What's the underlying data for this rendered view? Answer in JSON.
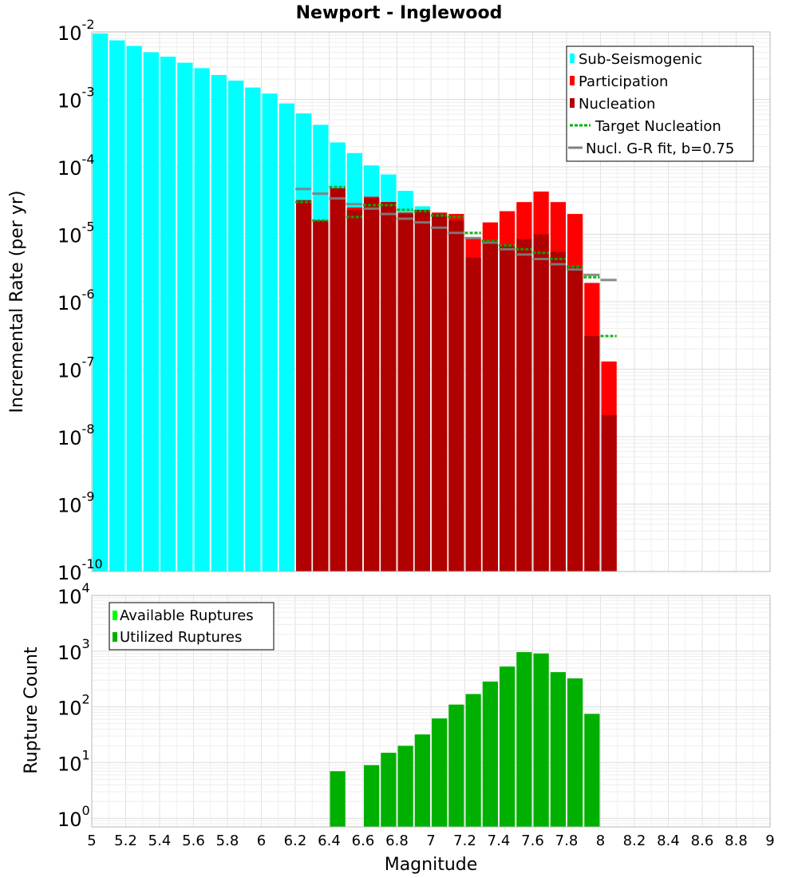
{
  "title": "Newport - Inglewood",
  "xlabel": "Magnitude",
  "x_ticks": [
    "5",
    "5.2",
    "5.4",
    "5.6",
    "5.8",
    "6",
    "6.2",
    "6.4",
    "6.6",
    "6.8",
    "7",
    "7.2",
    "7.4",
    "7.6",
    "7.8",
    "8",
    "8.2",
    "8.4",
    "8.6",
    "8.8",
    "9"
  ],
  "colors": {
    "sub_seismogenic": "#00ffff",
    "participation": "#ff0000",
    "nucleation": "#b00000",
    "target_nucleation": "#00b000",
    "gr_fit": "#808080",
    "available_ruptures": "#00ff00",
    "utilized_ruptures": "#00b000"
  },
  "chart_data": [
    {
      "type": "bar",
      "ylabel": "Incremental Rate (per yr)",
      "y_scale": "log",
      "xlim": [
        5,
        9
      ],
      "ylim": [
        1e-10,
        0.01
      ],
      "y_tick_base": [
        "10",
        "10",
        "10",
        "10",
        "10",
        "10",
        "10",
        "10",
        "10"
      ],
      "y_tick_exp": [
        "-10",
        "-9",
        "-8",
        "-7",
        "-6",
        "-5",
        "-4",
        "-3",
        "-2"
      ],
      "legend": [
        "Sub-Seismogenic",
        "Participation",
        "Nucleation",
        "Target Nucleation",
        "Nucl. G-R fit, b=0.75"
      ],
      "legend_position": "top-right",
      "grid": true,
      "bin_width": 0.1,
      "series": [
        {
          "name": "Sub-Seismogenic",
          "x": [
            5.05,
            5.15,
            5.25,
            5.35,
            5.45,
            5.55,
            5.65,
            5.75,
            5.85,
            5.95,
            6.05,
            6.15,
            6.25,
            6.35,
            6.45,
            6.55,
            6.65,
            6.75,
            6.85,
            6.95
          ],
          "values": [
            0.0095,
            0.0075,
            0.0062,
            0.005,
            0.0043,
            0.0035,
            0.0029,
            0.0023,
            0.0019,
            0.0015,
            0.00122,
            0.00087,
            0.00062,
            0.00042,
            0.00023,
            0.00016,
            0.000105,
            7.7e-05,
            4.4e-05,
            2.6e-05
          ]
        },
        {
          "name": "Participation",
          "x": [
            6.25,
            6.35,
            6.45,
            6.55,
            6.65,
            6.75,
            6.85,
            6.95,
            7.05,
            7.15,
            7.25,
            7.35,
            7.45,
            7.55,
            7.65,
            7.75,
            7.85,
            7.95,
            8.05
          ],
          "values": [
            3.2e-05,
            1.6e-05,
            4.8e-05,
            2.5e-05,
            3.6e-05,
            3e-05,
            2.1e-05,
            2.3e-05,
            2.1e-05,
            2e-05,
            8.7e-06,
            1.5e-05,
            2.2e-05,
            3e-05,
            4.3e-05,
            3e-05,
            2e-05,
            1.9e-06,
            1.3e-07
          ]
        },
        {
          "name": "Nucleation",
          "x": [
            6.25,
            6.35,
            6.45,
            6.55,
            6.65,
            6.75,
            6.85,
            6.95,
            7.05,
            7.15,
            7.25,
            7.35,
            7.45,
            7.55,
            7.65,
            7.75,
            7.85,
            7.95,
            8.05
          ],
          "values": [
            3.2e-05,
            1.6e-05,
            4.8e-05,
            2.3e-05,
            3.4e-05,
            3e-05,
            2e-05,
            2.3e-05,
            2e-05,
            1.6e-05,
            4.5e-06,
            8e-06,
            7e-06,
            8.5e-06,
            1e-05,
            5.5e-06,
            3.3e-06,
            3.1e-07,
            2.1e-08
          ]
        },
        {
          "name": "Target Nucleation",
          "x": [
            6.25,
            6.35,
            6.45,
            6.55,
            6.65,
            6.75,
            6.85,
            6.95,
            7.05,
            7.15,
            7.25,
            7.35,
            7.45,
            7.55,
            7.65,
            7.75,
            7.85,
            7.95,
            8.05
          ],
          "values": [
            3e-05,
            1.6e-05,
            5e-05,
            1.8e-05,
            2.7e-05,
            2.7e-05,
            2.3e-05,
            2.2e-05,
            1.9e-05,
            1.8e-05,
            1.05e-05,
            8e-06,
            6.8e-06,
            6e-06,
            5.3e-06,
            4.3e-06,
            3.3e-06,
            2.3e-06,
            3.1e-07
          ]
        },
        {
          "name": "Nucl. G-R fit, b=0.75",
          "x": [
            6.25,
            6.35,
            6.45,
            6.55,
            6.65,
            6.75,
            6.85,
            6.95,
            7.05,
            7.15,
            7.25,
            7.35,
            7.45,
            7.55,
            7.65,
            7.75,
            7.85,
            7.95,
            8.05
          ],
          "values": [
            4.7e-05,
            4e-05,
            3.4e-05,
            2.8e-05,
            2.4e-05,
            2e-05,
            1.7e-05,
            1.5e-05,
            1.25e-05,
            1.05e-05,
            8.8e-06,
            7.5e-06,
            6e-06,
            5e-06,
            4.3e-06,
            3.6e-06,
            3e-06,
            2.5e-06,
            2.1e-06
          ]
        }
      ]
    },
    {
      "type": "bar",
      "ylabel": "Rupture Count",
      "y_scale": "log",
      "xlim": [
        5,
        9
      ],
      "ylim": [
        0.7,
        10000
      ],
      "y_tick_base": [
        "10",
        "10",
        "10",
        "10",
        "10"
      ],
      "y_tick_exp": [
        "0",
        "1",
        "2",
        "3",
        "4"
      ],
      "legend": [
        "Available Ruptures",
        "Utilized Ruptures"
      ],
      "legend_position": "top-left",
      "grid": true,
      "bin_width": 0.1,
      "series": [
        {
          "name": "Utilized Ruptures",
          "x": [
            6.45,
            6.65,
            6.75,
            6.85,
            6.95,
            7.05,
            7.15,
            7.25,
            7.35,
            7.45,
            7.55,
            7.65,
            7.75,
            7.85,
            7.95
          ],
          "values": [
            7,
            9,
            15,
            20,
            32,
            62,
            110,
            170,
            285,
            530,
            960,
            910,
            420,
            325,
            75
          ]
        }
      ]
    }
  ]
}
